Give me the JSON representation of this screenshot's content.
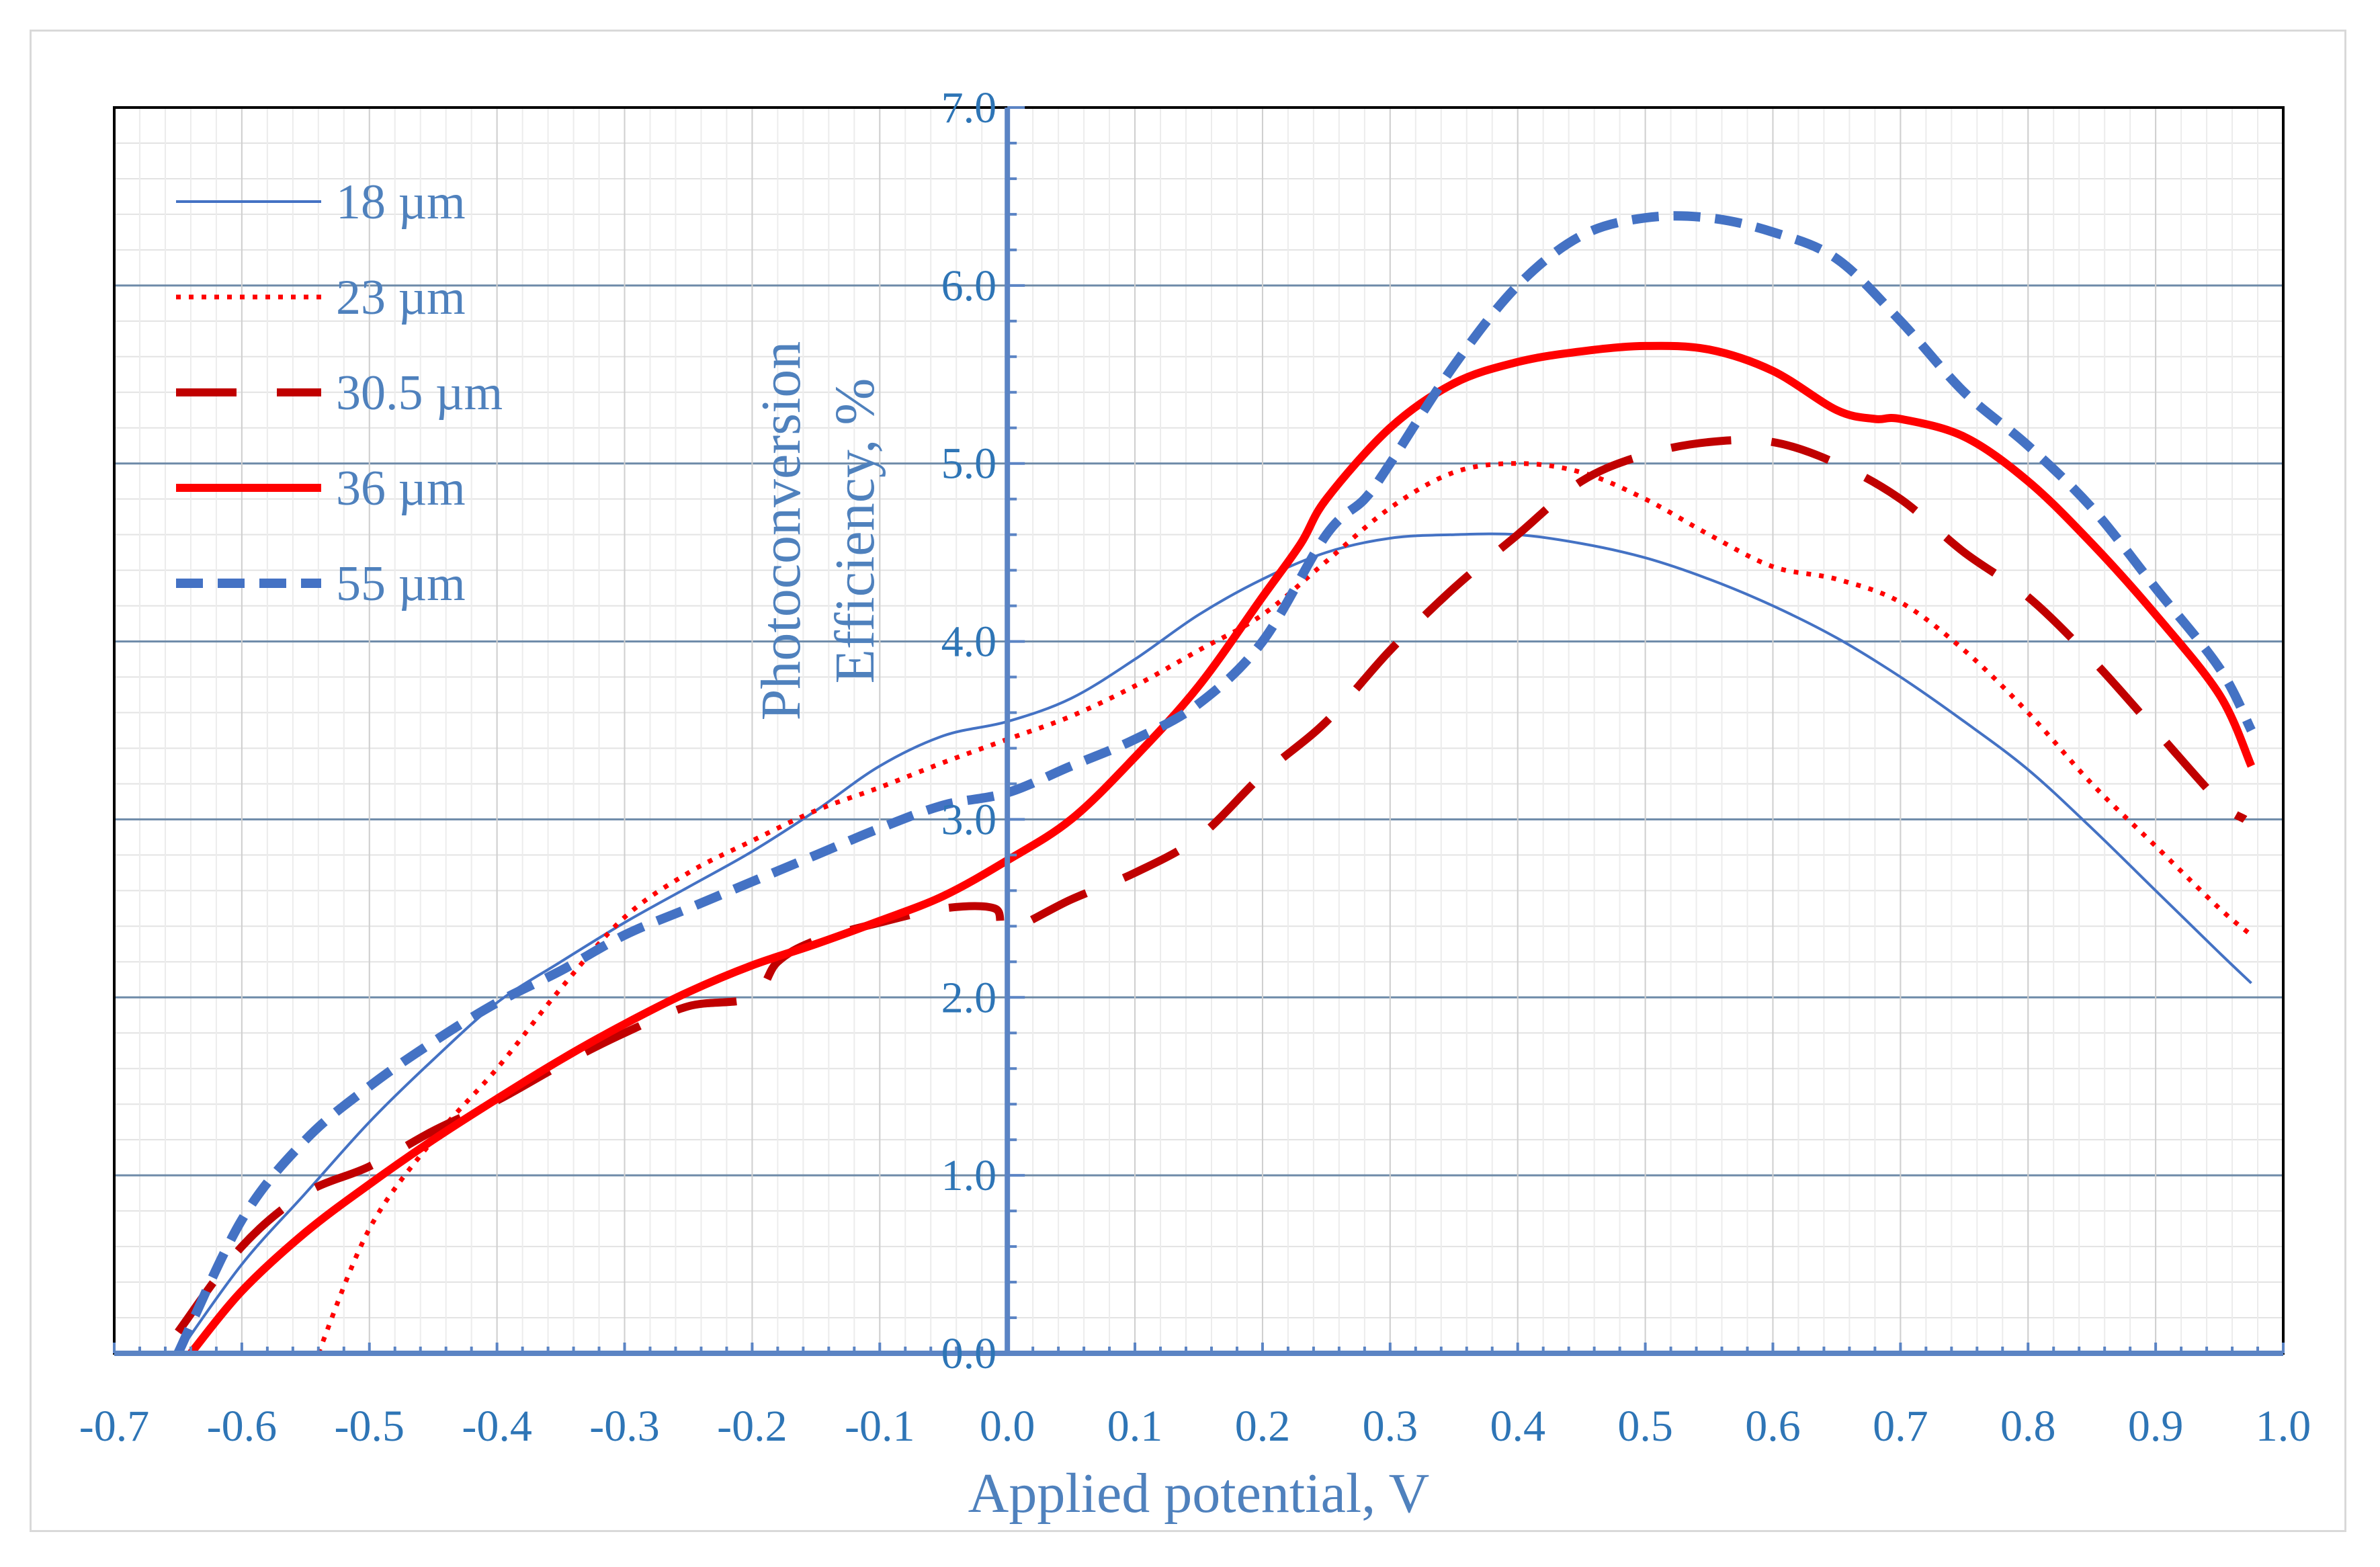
{
  "chart_data": {
    "type": "line",
    "title": "",
    "xlabel": "Applied potential, V",
    "ylabel_line1": "Photoconversion",
    "ylabel_line2": "Efficiency, %",
    "xlim": [
      -0.7,
      1.0
    ],
    "ylim": [
      0.0,
      7.0
    ],
    "x_ticks": [
      -0.7,
      -0.6,
      -0.5,
      -0.4,
      -0.3,
      -0.2,
      -0.1,
      0.0,
      0.1,
      0.2,
      0.3,
      0.4,
      0.5,
      0.6,
      0.7,
      0.8,
      0.9,
      1.0
    ],
    "x_tick_labels": [
      "-0.7",
      "-0.6",
      "-0.5",
      "-0.4",
      "-0.3",
      "-0.2",
      "-0.1",
      "0.0",
      "0.1",
      "0.2",
      "0.3",
      "0.4",
      "0.5",
      "0.6",
      "0.7",
      "0.8",
      "0.9",
      "1.0"
    ],
    "y_ticks": [
      0,
      1,
      2,
      3,
      4,
      5,
      6,
      7
    ],
    "y_tick_labels": [
      "0.0",
      "1.0",
      "2.0",
      "3.0",
      "4.0",
      "5.0",
      "6.0",
      "7.0"
    ],
    "grid": true,
    "legend_position": "top-left",
    "series": [
      {
        "name": "18 µm",
        "color": "#4472c4",
        "style": "solid-thin",
        "x": [
          -0.65,
          -0.6,
          -0.55,
          -0.5,
          -0.45,
          -0.4,
          -0.35,
          -0.3,
          -0.25,
          -0.2,
          -0.15,
          -0.1,
          -0.05,
          0.0,
          0.05,
          0.1,
          0.15,
          0.2,
          0.25,
          0.3,
          0.35,
          0.4,
          0.45,
          0.5,
          0.55,
          0.6,
          0.65,
          0.7,
          0.75,
          0.8,
          0.85,
          0.9,
          0.95,
          0.975
        ],
        "y": [
          0.0,
          0.5,
          0.9,
          1.3,
          1.65,
          1.97,
          2.2,
          2.42,
          2.62,
          2.82,
          3.05,
          3.3,
          3.47,
          3.55,
          3.68,
          3.9,
          4.15,
          4.35,
          4.5,
          4.58,
          4.6,
          4.6,
          4.55,
          4.47,
          4.35,
          4.2,
          4.02,
          3.8,
          3.55,
          3.28,
          2.95,
          2.6,
          2.25,
          2.08
        ]
      },
      {
        "name": "23 µm",
        "color": "#ff0000",
        "style": "dotted",
        "x": [
          -0.54,
          -0.5,
          -0.45,
          -0.4,
          -0.35,
          -0.3,
          -0.25,
          -0.2,
          -0.15,
          -0.1,
          -0.05,
          0.0,
          0.05,
          0.1,
          0.15,
          0.2,
          0.25,
          0.3,
          0.35,
          0.4,
          0.45,
          0.5,
          0.55,
          0.6,
          0.65,
          0.7,
          0.75,
          0.8,
          0.85,
          0.9,
          0.95,
          0.975
        ],
        "y": [
          0.0,
          0.7,
          1.2,
          1.6,
          2.05,
          2.45,
          2.7,
          2.88,
          3.05,
          3.18,
          3.32,
          3.45,
          3.58,
          3.75,
          3.95,
          4.15,
          4.45,
          4.75,
          4.95,
          5.0,
          4.95,
          4.8,
          4.6,
          4.42,
          4.35,
          4.22,
          3.95,
          3.6,
          3.2,
          2.85,
          2.5,
          2.35
        ]
      },
      {
        "name": "30.5 µm",
        "color": "#c00000",
        "style": "long-dash",
        "x": [
          -0.65,
          -0.6,
          -0.55,
          -0.5,
          -0.45,
          -0.4,
          -0.35,
          -0.3,
          -0.25,
          -0.2,
          -0.18,
          -0.15,
          -0.1,
          -0.05,
          -0.01,
          0.0,
          0.05,
          0.1,
          0.15,
          0.2,
          0.25,
          0.3,
          0.35,
          0.4,
          0.45,
          0.5,
          0.55,
          0.6,
          0.65,
          0.7,
          0.75,
          0.8,
          0.85,
          0.9,
          0.95,
          0.97
        ],
        "y": [
          0.12,
          0.6,
          0.9,
          1.05,
          1.25,
          1.42,
          1.62,
          1.8,
          1.95,
          2.0,
          2.2,
          2.32,
          2.42,
          2.5,
          2.5,
          2.38,
          2.55,
          2.7,
          2.9,
          3.25,
          3.55,
          3.95,
          4.3,
          4.6,
          4.9,
          5.05,
          5.12,
          5.12,
          5.0,
          4.8,
          4.5,
          4.25,
          3.9,
          3.5,
          3.1,
          3.0
        ]
      },
      {
        "name": "36 µm",
        "color": "#ff0000",
        "style": "solid-thick",
        "x": [
          -0.64,
          -0.6,
          -0.55,
          -0.5,
          -0.45,
          -0.4,
          -0.35,
          -0.3,
          -0.25,
          -0.2,
          -0.15,
          -0.1,
          -0.05,
          0.0,
          0.05,
          0.1,
          0.15,
          0.2,
          0.23,
          0.25,
          0.3,
          0.35,
          0.4,
          0.45,
          0.5,
          0.55,
          0.6,
          0.65,
          0.68,
          0.7,
          0.75,
          0.8,
          0.85,
          0.9,
          0.95,
          0.975
        ],
        "y": [
          0.0,
          0.35,
          0.68,
          0.95,
          1.2,
          1.43,
          1.65,
          1.85,
          2.03,
          2.18,
          2.3,
          2.43,
          2.57,
          2.77,
          3.0,
          3.35,
          3.75,
          4.25,
          4.55,
          4.8,
          5.2,
          5.45,
          5.57,
          5.63,
          5.66,
          5.64,
          5.52,
          5.3,
          5.25,
          5.25,
          5.15,
          4.9,
          4.55,
          4.15,
          3.7,
          3.3
        ]
      },
      {
        "name": "55 µm",
        "color": "#4472c4",
        "style": "dashed-thick",
        "x": [
          -0.65,
          -0.6,
          -0.55,
          -0.5,
          -0.45,
          -0.4,
          -0.35,
          -0.3,
          -0.25,
          -0.2,
          -0.15,
          -0.1,
          -0.05,
          0.0,
          0.05,
          0.1,
          0.15,
          0.2,
          0.25,
          0.28,
          0.3,
          0.35,
          0.4,
          0.45,
          0.5,
          0.55,
          0.6,
          0.65,
          0.7,
          0.75,
          0.8,
          0.85,
          0.9,
          0.95,
          0.975
        ],
        "y": [
          0.0,
          0.75,
          1.2,
          1.5,
          1.75,
          1.97,
          2.15,
          2.35,
          2.5,
          2.65,
          2.8,
          2.95,
          3.08,
          3.15,
          3.3,
          3.45,
          3.65,
          4.0,
          4.6,
          4.8,
          5.0,
          5.55,
          6.0,
          6.28,
          6.38,
          6.38,
          6.3,
          6.15,
          5.8,
          5.4,
          5.1,
          4.75,
          4.3,
          3.85,
          3.5
        ]
      }
    ]
  }
}
